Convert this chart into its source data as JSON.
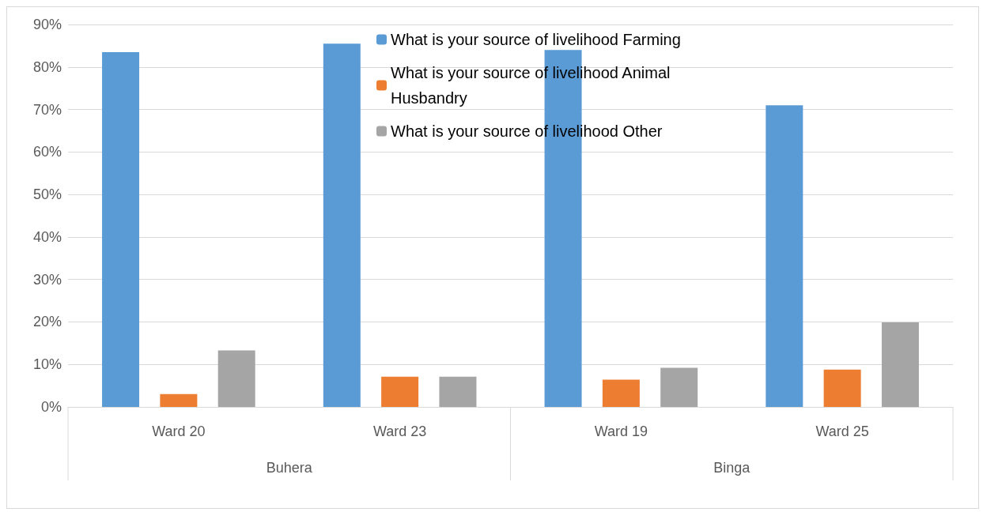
{
  "chart_data": {
    "type": "bar",
    "categories": [
      "Ward 20",
      "Ward 23",
      "Ward 19",
      "Ward 25"
    ],
    "series": [
      {
        "name": "What is your source of livelihood Farming",
        "color": "#5b9bd5",
        "values": [
          83.5,
          85.5,
          84,
          71
        ]
      },
      {
        "name": "What is your source of livelihood Animal Husbandry",
        "color": "#ed7d31",
        "values": [
          3,
          7.1,
          6.4,
          8.8
        ]
      },
      {
        "name": "What is your source of livelihood Other",
        "color": "#a5a5a5",
        "values": [
          13.3,
          7.1,
          9.2,
          19.9
        ]
      }
    ],
    "annotations": [
      "Buhera",
      "Binga"
    ],
    "ylim": [
      0,
      90
    ],
    "yticks": [
      {
        "value": 0,
        "label": "0%"
      },
      {
        "value": 10,
        "label": "10%"
      },
      {
        "value": 20,
        "label": "20%"
      },
      {
        "value": 30,
        "label": "30%"
      },
      {
        "value": 40,
        "label": "40%"
      },
      {
        "value": 50,
        "label": "50%"
      },
      {
        "value": 60,
        "label": "60%"
      },
      {
        "value": 70,
        "label": "70%"
      },
      {
        "value": 80,
        "label": "80%"
      },
      {
        "value": 90,
        "label": "90%"
      }
    ],
    "grid": "y",
    "legend": "top"
  }
}
